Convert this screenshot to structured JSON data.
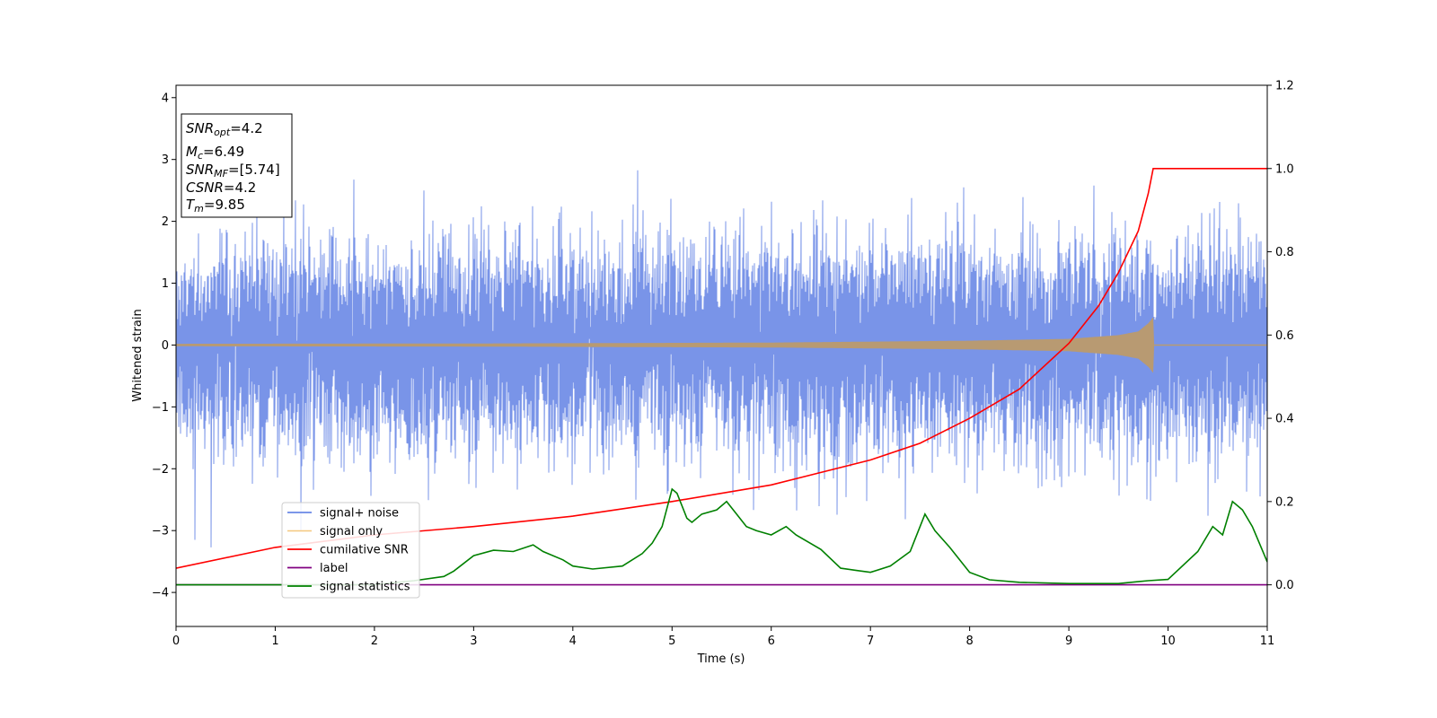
{
  "chart_data": {
    "type": "line",
    "xlabel": "Time (s)",
    "ylabel": "Whitened strain",
    "xlim": [
      0,
      11
    ],
    "ylim_left": [
      -4.55,
      4.2
    ],
    "ylim_right": [
      -0.1,
      1.2
    ],
    "x_ticks": [
      "0",
      "1",
      "2",
      "3",
      "4",
      "5",
      "6",
      "7",
      "8",
      "9",
      "10",
      "11"
    ],
    "y_ticks_left": [
      "−4",
      "−3",
      "−2",
      "−1",
      "0",
      "1",
      "2",
      "3",
      "4"
    ],
    "y_ticks_right": [
      "0.0",
      "0.2",
      "0.4",
      "0.6",
      "0.8",
      "1.0",
      "1.2"
    ],
    "grid": false,
    "legend": {
      "placement": "lower-left",
      "entries": [
        "signal+ noise",
        "signal only",
        "cumilative SNR",
        "label",
        "signal statistics"
      ]
    },
    "colors": {
      "signal_noise": "#6a88e6",
      "signal_only": "#f5c77e",
      "signal_overlap": "#b89a72",
      "cumulative_snr": "#ff0000",
      "label": "#800080",
      "signal_statistics": "#008000"
    },
    "signal_noise": {
      "axis": "left",
      "dt": 0.001,
      "std": 1.0,
      "peak_max": 3.8,
      "peak_min": -4.18
    },
    "signal_only": {
      "axis": "left",
      "envelope": [
        [
          0,
          0.02
        ],
        [
          3,
          0.025
        ],
        [
          6,
          0.04
        ],
        [
          8,
          0.07
        ],
        [
          9,
          0.1
        ],
        [
          9.5,
          0.16
        ],
        [
          9.7,
          0.22
        ],
        [
          9.8,
          0.35
        ],
        [
          9.85,
          0.45
        ],
        [
          9.86,
          0.0
        ],
        [
          11,
          0.0
        ]
      ]
    },
    "cumulative_snr": {
      "axis": "right",
      "x": [
        0,
        1,
        2,
        3,
        4,
        5,
        6,
        7,
        7.5,
        8,
        8.5,
        9,
        9.3,
        9.5,
        9.7,
        9.8,
        9.85,
        11
      ],
      "y": [
        0.04,
        0.09,
        0.12,
        0.14,
        0.165,
        0.2,
        0.24,
        0.3,
        0.34,
        0.4,
        0.47,
        0.58,
        0.67,
        0.75,
        0.85,
        0.94,
        1.0,
        1.0
      ]
    },
    "label": {
      "axis": "right",
      "x": [
        0,
        11
      ],
      "y": [
        0.0,
        0.0
      ]
    },
    "signal_statistics": {
      "axis": "right",
      "x": [
        0,
        1,
        2,
        2.4,
        2.7,
        2.8,
        3,
        3.2,
        3.4,
        3.6,
        3.7,
        3.9,
        4.0,
        4.2,
        4.5,
        4.7,
        4.8,
        4.9,
        5.0,
        5.05,
        5.15,
        5.2,
        5.3,
        5.45,
        5.55,
        5.65,
        5.75,
        5.85,
        6.0,
        6.15,
        6.25,
        6.5,
        6.7,
        6.85,
        7.0,
        7.2,
        7.4,
        7.55,
        7.65,
        7.8,
        8.0,
        8.2,
        8.5,
        9.0,
        9.5,
        9.8,
        10.0,
        10.3,
        10.45,
        10.55,
        10.65,
        10.75,
        10.85,
        11
      ],
      "y": [
        0.0,
        0.0,
        0.0,
        0.01,
        0.02,
        0.033,
        0.07,
        0.083,
        0.08,
        0.096,
        0.08,
        0.06,
        0.045,
        0.038,
        0.045,
        0.075,
        0.1,
        0.14,
        0.23,
        0.22,
        0.16,
        0.15,
        0.17,
        0.18,
        0.2,
        0.17,
        0.14,
        0.13,
        0.12,
        0.14,
        0.12,
        0.085,
        0.04,
        0.035,
        0.03,
        0.045,
        0.08,
        0.17,
        0.13,
        0.09,
        0.03,
        0.012,
        0.006,
        0.003,
        0.003,
        0.01,
        0.013,
        0.08,
        0.14,
        0.12,
        0.2,
        0.18,
        0.14,
        0.055
      ]
    }
  },
  "info_box": {
    "snr_opt_label": "SNR",
    "snr_opt_sub": "opt",
    "snr_opt_value": "=4.2",
    "mc_label": "M",
    "mc_sub": "c",
    "mc_value": "=6.49",
    "snr_mf_label": "SNR",
    "snr_mf_sub": "MF",
    "snr_mf_value": "=[5.74]",
    "csnr_label": "CSNR",
    "csnr_value": "=4.2",
    "tm_label": "T",
    "tm_sub": "m",
    "tm_value": "=9.85"
  }
}
